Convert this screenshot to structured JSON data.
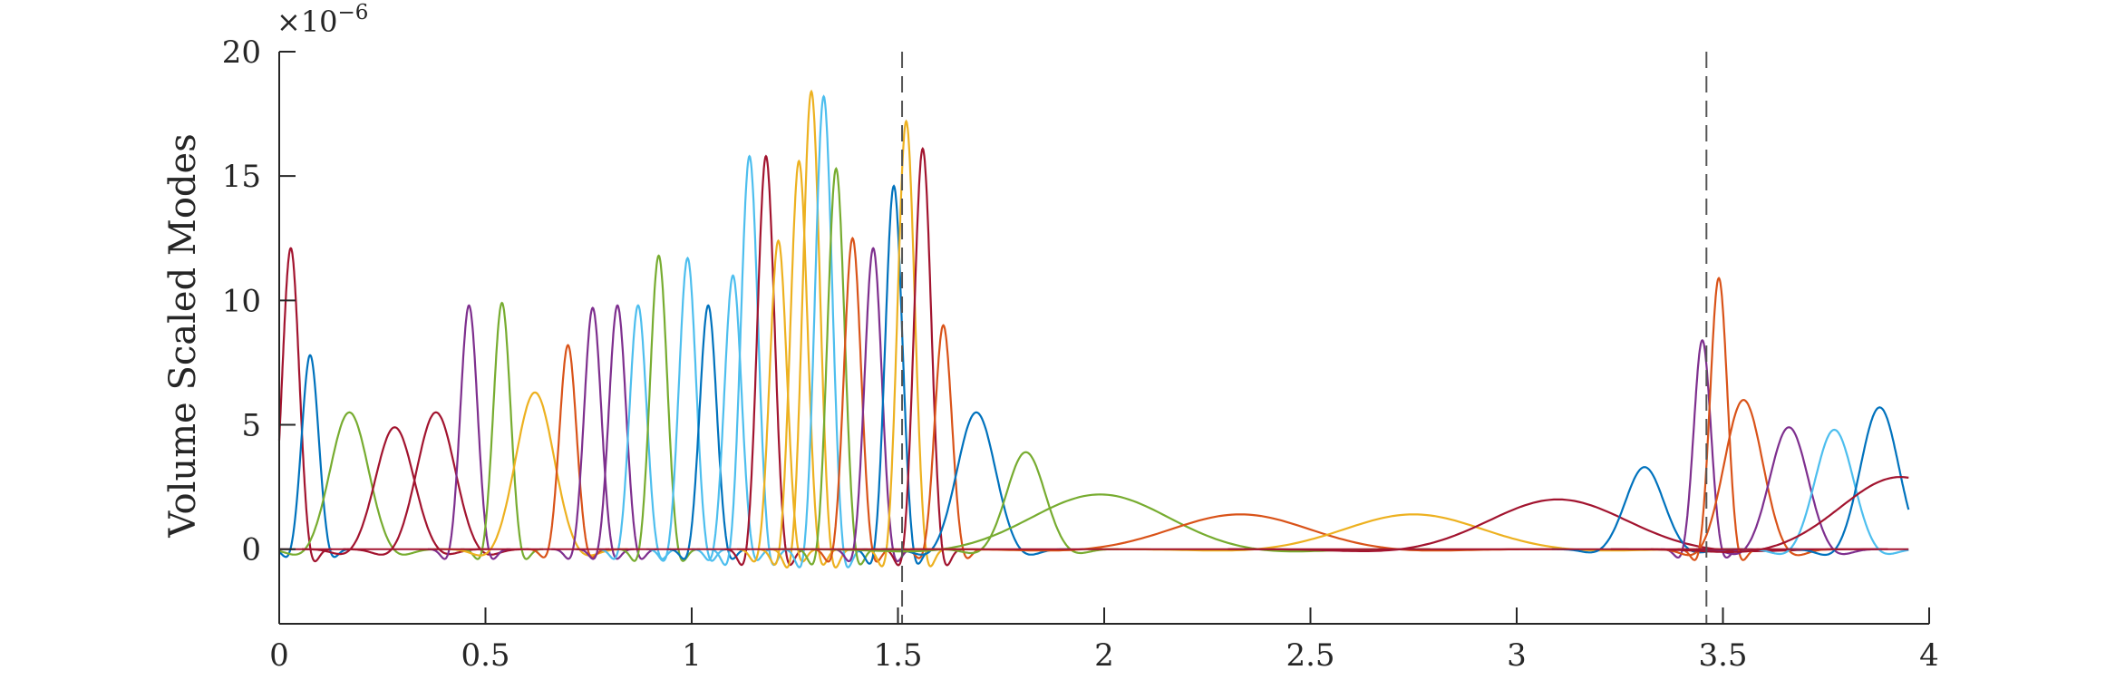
{
  "chart_data": {
    "type": "line",
    "title": "",
    "xlabel": "",
    "ylabel": "Volume Scaled Modes",
    "y_exponent_label": "×10",
    "y_exponent_power": "−6",
    "xlim": [
      0,
      4
    ],
    "ylim": [
      -3e-06,
      2e-05
    ],
    "x_ticks": [
      0,
      0.5,
      1,
      1.5,
      2,
      2.5,
      3,
      3.5,
      4
    ],
    "x_tick_labels": [
      "0",
      "0.5",
      "1",
      "1.5",
      "2",
      "2.5",
      "3",
      "3.5",
      "4"
    ],
    "y_ticks": [
      0,
      5e-06,
      1e-05,
      1.5e-05,
      2e-05
    ],
    "y_tick_labels": [
      "0",
      "5",
      "10",
      "15",
      "20"
    ],
    "grid": false,
    "box": "left-bottom",
    "vertical_lines": [
      1.51,
      3.46
    ],
    "series_colors": [
      "#0072BD",
      "#D95319",
      "#EDB120",
      "#7E2F8E",
      "#77AC30",
      "#4DBEEE",
      "#A2142F"
    ],
    "peaks": [
      {
        "x": 0.028,
        "y": 1.21e-05,
        "color": "#A2142F"
      },
      {
        "x": 0.075,
        "y": 7.8e-06,
        "color": "#0072BD"
      },
      {
        "x": 0.17,
        "y": 5.5e-06,
        "color": "#77AC30"
      },
      {
        "x": 0.28,
        "y": 4.9e-06,
        "color": "#A2142F"
      },
      {
        "x": 0.38,
        "y": 5.5e-06,
        "color": "#A2142F"
      },
      {
        "x": 0.46,
        "y": 9.8e-06,
        "color": "#7E2F8E"
      },
      {
        "x": 0.54,
        "y": 9.9e-06,
        "color": "#77AC30"
      },
      {
        "x": 0.62,
        "y": 6.3e-06,
        "color": "#EDB120"
      },
      {
        "x": 0.7,
        "y": 8.2e-06,
        "color": "#D95319"
      },
      {
        "x": 0.76,
        "y": 9.7e-06,
        "color": "#7E2F8E"
      },
      {
        "x": 0.82,
        "y": 9.8e-06,
        "color": "#7E2F8E"
      },
      {
        "x": 0.87,
        "y": 9.8e-06,
        "color": "#4DBEEE"
      },
      {
        "x": 0.92,
        "y": 1.18e-05,
        "color": "#77AC30"
      },
      {
        "x": 0.99,
        "y": 1.17e-05,
        "color": "#4DBEEE"
      },
      {
        "x": 1.04,
        "y": 9.8e-06,
        "color": "#0072BD"
      },
      {
        "x": 1.1,
        "y": 1.1e-05,
        "color": "#4DBEEE"
      },
      {
        "x": 1.14,
        "y": 1.58e-05,
        "color": "#4DBEEE"
      },
      {
        "x": 1.18,
        "y": 1.58e-05,
        "color": "#A2142F"
      },
      {
        "x": 1.21,
        "y": 1.24e-05,
        "color": "#EDB120"
      },
      {
        "x": 1.26,
        "y": 1.56e-05,
        "color": "#EDB120"
      },
      {
        "x": 1.29,
        "y": 1.84e-05,
        "color": "#EDB120"
      },
      {
        "x": 1.32,
        "y": 1.82e-05,
        "color": "#4DBEEE"
      },
      {
        "x": 1.35,
        "y": 1.53e-05,
        "color": "#77AC30"
      },
      {
        "x": 1.39,
        "y": 1.25e-05,
        "color": "#D95319"
      },
      {
        "x": 1.44,
        "y": 1.21e-05,
        "color": "#7E2F8E"
      },
      {
        "x": 1.49,
        "y": 1.46e-05,
        "color": "#0072BD"
      },
      {
        "x": 1.52,
        "y": 1.72e-05,
        "color": "#EDB120"
      },
      {
        "x": 1.56,
        "y": 1.61e-05,
        "color": "#A2142F"
      },
      {
        "x": 1.61,
        "y": 9e-06,
        "color": "#D95319"
      },
      {
        "x": 1.69,
        "y": 5.5e-06,
        "color": "#0072BD"
      },
      {
        "x": 1.81,
        "y": 3.9e-06,
        "color": "#77AC30"
      },
      {
        "x": 1.99,
        "y": 2.2e-06,
        "color": "#77AC30"
      },
      {
        "x": 2.33,
        "y": 1.4e-06,
        "color": "#D95319"
      },
      {
        "x": 2.75,
        "y": 1.4e-06,
        "color": "#EDB120"
      },
      {
        "x": 3.1,
        "y": 2e-06,
        "color": "#A2142F"
      },
      {
        "x": 3.31,
        "y": 3.3e-06,
        "color": "#0072BD"
      },
      {
        "x": 3.45,
        "y": 8.4e-06,
        "color": "#7E2F8E"
      },
      {
        "x": 3.49,
        "y": 1.09e-05,
        "color": "#D95319"
      },
      {
        "x": 3.55,
        "y": 6e-06,
        "color": "#D95319"
      },
      {
        "x": 3.66,
        "y": 4.9e-06,
        "color": "#7E2F8E"
      },
      {
        "x": 3.77,
        "y": 4.8e-06,
        "color": "#4DBEEE"
      },
      {
        "x": 3.88,
        "y": 5.7e-06,
        "color": "#0072BD"
      },
      {
        "x": 3.93,
        "y": 2.9e-06,
        "color": "#A2142F"
      }
    ]
  }
}
